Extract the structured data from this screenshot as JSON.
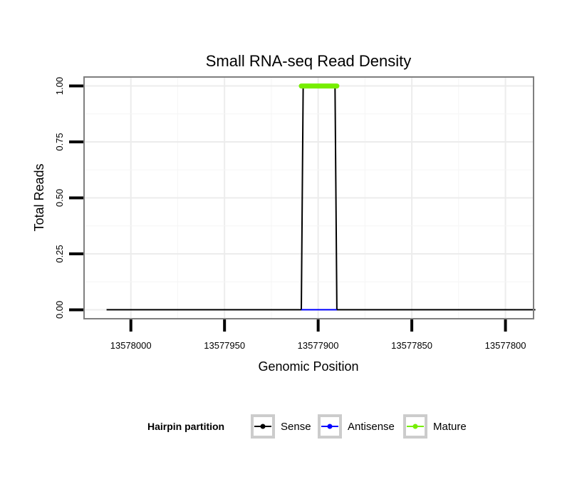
{
  "chart_data": {
    "type": "line",
    "title": "Small RNA-seq Read Density",
    "xlabel": "Genomic Position",
    "ylabel": "Total Reads",
    "x_reversed": true,
    "xlim": [
      13578025,
      13577785
    ],
    "ylim": [
      -0.04,
      1.04
    ],
    "x_ticks": [
      13578000,
      13577950,
      13577900,
      13577850,
      13577800
    ],
    "x_tick_labels": [
      "13578000",
      "13577950",
      "13577900",
      "13577850",
      "13577800"
    ],
    "y_ticks": [
      0,
      0.25,
      0.5,
      0.75,
      1
    ],
    "y_tick_labels": [
      "0.00",
      "0.25",
      "0.50",
      "0.75",
      "1.00"
    ],
    "grid": true,
    "legend": {
      "title": "Hairpin partition",
      "position": "bottom"
    },
    "series": [
      {
        "name": "Sense",
        "color": "#000000",
        "x": [
          13578013,
          13577909,
          13577908,
          13577891,
          13577890,
          13577784
        ],
        "y": [
          0,
          0,
          1,
          1,
          0,
          0
        ]
      },
      {
        "name": "Antisense",
        "color": "#0000ff",
        "x": [
          13577909,
          13577890
        ],
        "y": [
          0,
          0
        ]
      },
      {
        "name": "Mature",
        "color": "#76ee00",
        "x": [
          13577909,
          13577890
        ],
        "y": [
          1,
          1
        ]
      }
    ]
  }
}
